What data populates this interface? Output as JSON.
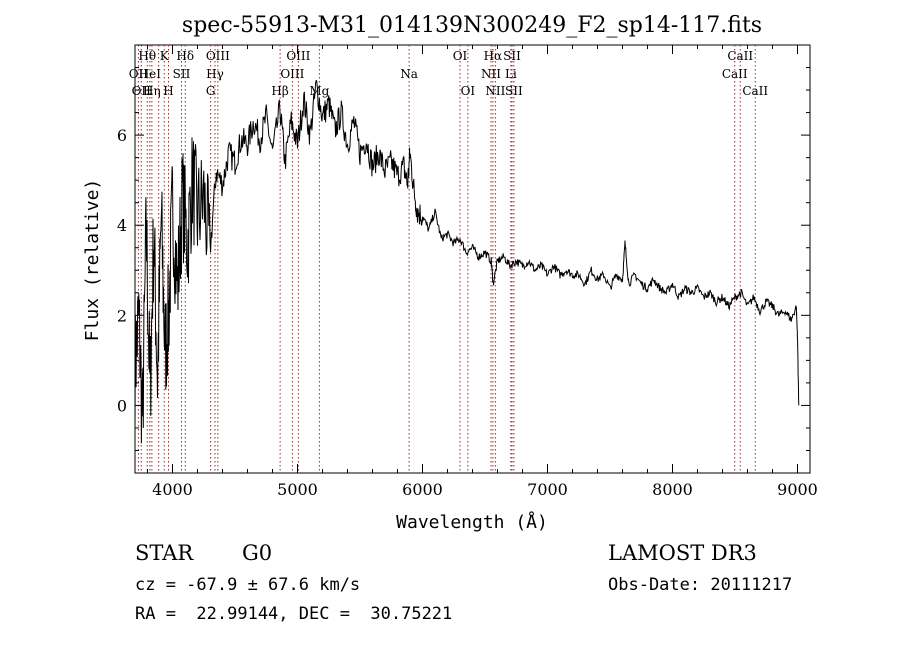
{
  "chart_data": {
    "type": "line",
    "title": "spec-55913-M31_014139N300249_F2_sp14-117.fits",
    "xlabel": "Wavelength (Å)",
    "ylabel": "Flux (relative)",
    "xlim": [
      3700,
      9100
    ],
    "ylim": [
      -1.5,
      8.0
    ],
    "x_ticks": [
      {
        "value": 4000,
        "label": "4000"
      },
      {
        "value": 5000,
        "label": "5000"
      },
      {
        "value": 6000,
        "label": "6000"
      },
      {
        "value": 7000,
        "label": "7000"
      },
      {
        "value": 8000,
        "label": "8000"
      },
      {
        "value": 9000,
        "label": "9000"
      }
    ],
    "y_ticks": [
      {
        "value": 0,
        "label": "0"
      },
      {
        "value": 2,
        "label": "2"
      },
      {
        "value": 4,
        "label": "4"
      },
      {
        "value": 6,
        "label": "6"
      }
    ],
    "grid": false,
    "series": [
      {
        "x": [
          3700,
          3730,
          3760,
          3790,
          3820,
          3850,
          3880,
          3910,
          3940,
          3970,
          4000,
          4040,
          4080,
          4120,
          4160,
          4200,
          4250,
          4300,
          4350,
          4400,
          4450,
          4500,
          4550,
          4600,
          4650,
          4700,
          4750,
          4800,
          4860,
          4900,
          4950,
          5000,
          5050,
          5100,
          5150,
          5200,
          5250,
          5300,
          5350,
          5400,
          5450,
          5500,
          5550,
          5600,
          5650,
          5700,
          5750,
          5800,
          5850,
          5880,
          5900,
          5930,
          5960,
          6000,
          6050,
          6100,
          6150,
          6200,
          6250,
          6300,
          6350,
          6400,
          6450,
          6500,
          6550,
          6565,
          6600,
          6650,
          6700,
          6750,
          6800,
          6850,
          6900,
          6950,
          7000,
          7050,
          7100,
          7150,
          7200,
          7250,
          7300,
          7350,
          7400,
          7450,
          7500,
          7550,
          7600,
          7620,
          7650,
          7700,
          7750,
          7800,
          7850,
          7900,
          7950,
          8000,
          8050,
          8100,
          8150,
          8200,
          8250,
          8300,
          8350,
          8400,
          8450,
          8500,
          8550,
          8600,
          8650,
          8700,
          8750,
          8800,
          8850,
          8900,
          8950,
          8990,
          9000,
          9010
        ],
        "y": [
          0.8,
          2.0,
          -0.4,
          4.0,
          0.2,
          3.8,
          0.6,
          4.2,
          1.2,
          2.0,
          4.5,
          2.6,
          4.6,
          3.6,
          5.0,
          4.2,
          4.6,
          3.4,
          5.2,
          4.9,
          5.6,
          5.4,
          5.9,
          5.8,
          6.3,
          5.9,
          6.4,
          5.6,
          6.6,
          5.4,
          6.3,
          5.8,
          6.8,
          6.0,
          7.1,
          6.4,
          6.7,
          6.1,
          6.5,
          5.8,
          6.3,
          5.6,
          5.9,
          5.3,
          5.6,
          5.2,
          5.4,
          5.1,
          5.3,
          4.9,
          5.6,
          4.8,
          4.3,
          4.2,
          3.9,
          4.3,
          3.7,
          3.8,
          3.6,
          3.7,
          3.4,
          3.5,
          3.3,
          3.4,
          3.2,
          2.7,
          3.2,
          3.3,
          3.1,
          3.2,
          3.1,
          3.2,
          3.0,
          3.1,
          2.9,
          3.1,
          2.9,
          3.0,
          2.9,
          2.9,
          2.7,
          3.0,
          2.8,
          2.9,
          2.6,
          2.9,
          2.8,
          3.6,
          2.7,
          2.9,
          2.7,
          2.6,
          2.8,
          2.6,
          2.5,
          2.7,
          2.4,
          2.6,
          2.5,
          2.6,
          2.4,
          2.5,
          2.3,
          2.4,
          2.2,
          2.4,
          2.5,
          2.2,
          2.4,
          2.1,
          2.3,
          2.2,
          2.0,
          2.1,
          1.9,
          2.2,
          1.5,
          0.0
        ]
      }
    ],
    "lines": [
      {
        "x": 3727,
        "label": "OII",
        "row": 1
      },
      {
        "x": 3750,
        "label": "OII",
        "row": 2
      },
      {
        "x": 3798,
        "label": "Hθ",
        "row": 0
      },
      {
        "x": 3819,
        "label": "HeI",
        "row": 1
      },
      {
        "x": 3835,
        "label": "Hη",
        "row": 2
      },
      {
        "x": 3889,
        "label": "",
        "row": 2
      },
      {
        "x": 3934,
        "label": "K",
        "row": 0
      },
      {
        "x": 3968,
        "label": "H",
        "row": 2
      },
      {
        "x": 4072,
        "label": "SII",
        "row": 1
      },
      {
        "x": 4102,
        "label": "Hδ",
        "row": 0
      },
      {
        "x": 4305,
        "label": "G",
        "row": 2
      },
      {
        "x": 4340,
        "label": "Hγ",
        "row": 1
      },
      {
        "x": 4363,
        "label": "OIII",
        "row": 0
      },
      {
        "x": 4861,
        "label": "Hβ",
        "row": 2
      },
      {
        "x": 4959,
        "label": "OIII",
        "row": 1
      },
      {
        "x": 5007,
        "label": "OIII",
        "row": 0
      },
      {
        "x": 5175,
        "label": "Mg",
        "row": 2
      },
      {
        "x": 5893,
        "label": "Na",
        "row": 1
      },
      {
        "x": 6300,
        "label": "OI",
        "row": 0
      },
      {
        "x": 6363,
        "label": "OI",
        "row": 2
      },
      {
        "x": 6548,
        "label": "NII",
        "row": 1
      },
      {
        "x": 6563,
        "label": "Hα",
        "row": 0
      },
      {
        "x": 6583,
        "label": "NII",
        "row": 2
      },
      {
        "x": 6707,
        "label": "Li",
        "row": 1
      },
      {
        "x": 6716,
        "label": "SII",
        "row": 0
      },
      {
        "x": 6731,
        "label": "SII",
        "row": 2
      },
      {
        "x": 8498,
        "label": "CaII",
        "row": 1
      },
      {
        "x": 8542,
        "label": "CaII",
        "row": 0
      },
      {
        "x": 8662,
        "label": "CaII",
        "row": 2
      }
    ]
  },
  "footer": {
    "class_label": "STAR",
    "subclass": "G0",
    "survey": "LAMOST DR3",
    "cz": "cz = -67.9 ± 67.6 km/s",
    "obs_date": "Obs-Date: 20111217",
    "radec": "RA =  22.99144, DEC =  30.75221"
  },
  "colors": {
    "line_marker": "#b22222",
    "spectrum": "#000000"
  }
}
